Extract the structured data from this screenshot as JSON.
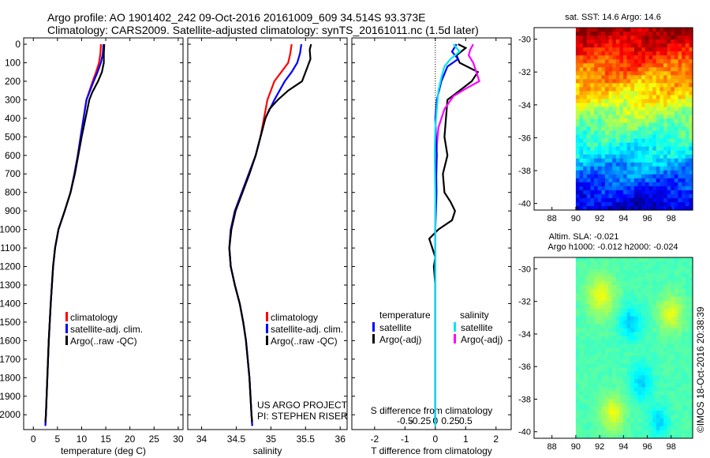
{
  "header": {
    "line1": "Argo profile: AO 1901402_242 09-Oct-2016 20161009_609 34.514S 93.373E",
    "line2": "Climatology: CARS2009. Satellite-adjusted climatology: synTS_20161011.nc (1.5d later)"
  },
  "colors": {
    "climatology": "#ff0000",
    "satellite": "#0000ff",
    "argo": "#000000",
    "satellite_salinity": "#00e5ee",
    "argo_salinity": "#ff00ff"
  },
  "chart_data": [
    {
      "type": "line",
      "xlabel": "temperature (deg C)",
      "ylabel": "",
      "xlim": [
        -2,
        31
      ],
      "ylim": [
        2080,
        0
      ],
      "xticks": [
        0,
        5,
        10,
        15,
        20,
        25,
        30
      ],
      "yticks": [
        0,
        100,
        200,
        300,
        400,
        500,
        600,
        700,
        800,
        900,
        1000,
        1100,
        1200,
        1300,
        1400,
        1500,
        1600,
        1700,
        1800,
        1900,
        2000
      ],
      "legend": [
        "climatology",
        "satellite-adj. clim.",
        "Argo(..raw -QC)"
      ],
      "legend_location": "lower-right",
      "series": [
        {
          "name": "climatology",
          "depth": [
            0,
            50,
            100,
            150,
            200,
            300,
            400,
            500,
            600,
            700,
            800,
            900,
            1000,
            1100,
            1200,
            1400,
            1600,
            1800,
            2000,
            2060
          ],
          "values": [
            14.0,
            13.9,
            13.6,
            13.0,
            12.3,
            11.0,
            10.4,
            9.8,
            9.2,
            8.5,
            7.7,
            6.5,
            5.2,
            4.5,
            4.1,
            3.6,
            3.2,
            2.9,
            2.6,
            2.5
          ]
        },
        {
          "name": "satellite-adj. clim.",
          "depth": [
            0,
            50,
            100,
            150,
            200,
            300,
            400,
            500,
            600,
            700,
            800,
            900,
            1000,
            1100,
            1200,
            1400,
            1600,
            1800,
            2000,
            2060
          ],
          "values": [
            14.5,
            14.4,
            14.0,
            13.3,
            12.5,
            11.0,
            10.4,
            9.8,
            9.2,
            8.5,
            7.7,
            6.5,
            5.2,
            4.5,
            4.1,
            3.6,
            3.2,
            2.9,
            2.6,
            2.5
          ]
        },
        {
          "name": "Argo(..raw -QC)",
          "depth": [
            0,
            50,
            100,
            150,
            200,
            260,
            300,
            400,
            500,
            600,
            700,
            800,
            900,
            1000,
            1100,
            1200,
            1400,
            1600,
            1800,
            2000,
            2040
          ],
          "values": [
            14.7,
            14.6,
            14.6,
            14.2,
            13.4,
            12.2,
            11.6,
            10.8,
            10.0,
            9.3,
            8.6,
            7.7,
            6.5,
            5.2,
            4.5,
            4.1,
            3.6,
            3.2,
            2.9,
            2.6,
            2.5
          ]
        }
      ]
    },
    {
      "type": "line",
      "xlabel": "salinity",
      "ylabel": "",
      "xlim": [
        33.8,
        36.1
      ],
      "ylim": [
        2080,
        0
      ],
      "xticks": [
        34,
        34.5,
        35,
        35.5,
        36
      ],
      "legend": [
        "climatology",
        "satellite-adj. clim.",
        "Argo(..raw -QC)"
      ],
      "legend_location": "lower-right",
      "annotations": [
        "US ARGO PROJECT",
        "PI: STEPHEN RISER"
      ],
      "series": [
        {
          "name": "climatology",
          "depth": [
            0,
            50,
            100,
            150,
            200,
            300,
            400,
            500,
            600,
            700,
            800,
            900,
            1000,
            1100,
            1200,
            1300,
            1400,
            1500,
            1600,
            1800,
            2000,
            2060
          ],
          "values": [
            35.3,
            35.28,
            35.25,
            35.15,
            35.05,
            34.95,
            34.9,
            34.85,
            34.78,
            34.68,
            34.58,
            34.48,
            34.42,
            34.4,
            34.42,
            34.48,
            34.55,
            34.6,
            34.64,
            34.69,
            34.72,
            34.73
          ]
        },
        {
          "name": "satellite-adj. clim.",
          "depth": [
            0,
            50,
            100,
            150,
            200,
            300,
            400,
            500,
            600,
            700,
            800,
            900,
            1000,
            1100,
            1200,
            1300,
            1400,
            1500,
            1600,
            1800,
            2000,
            2060
          ],
          "values": [
            35.44,
            35.42,
            35.38,
            35.3,
            35.2,
            35.05,
            34.92,
            34.85,
            34.78,
            34.68,
            34.58,
            34.48,
            34.42,
            34.4,
            34.42,
            34.48,
            34.55,
            34.6,
            34.64,
            34.69,
            34.72,
            34.73
          ]
        },
        {
          "name": "Argo(..raw -QC)",
          "depth": [
            0,
            30,
            80,
            130,
            200,
            250,
            300,
            350,
            400,
            500,
            600,
            700,
            800,
            900,
            1000,
            1100,
            1200,
            1300,
            1400,
            1500,
            1600,
            1800,
            2000,
            2040
          ],
          "values": [
            35.58,
            35.56,
            35.57,
            35.52,
            35.45,
            35.25,
            35.1,
            34.98,
            34.92,
            34.85,
            34.78,
            34.69,
            34.59,
            34.49,
            34.43,
            34.4,
            34.42,
            34.48,
            34.55,
            34.6,
            34.64,
            34.69,
            34.72,
            34.73
          ]
        }
      ]
    },
    {
      "type": "line",
      "xlabel": "T difference from climatology",
      "top_xlabel": "S difference from climatology",
      "xlim": [
        -2.75,
        2.5
      ],
      "ylim": [
        2080,
        0
      ],
      "xticks_T": [
        -2,
        -1,
        0,
        1,
        2
      ],
      "xticks_S_labels": [
        "-0.5",
        "-0.25",
        "0",
        "0.25",
        "0.5"
      ],
      "legend_temperature_title": "temperature",
      "legend_salinity_title": "salinity",
      "legend": [
        "satellite",
        "Argo(-adj)",
        "satellite",
        "Argo(-adj)"
      ],
      "series": [
        {
          "name": "satellite",
          "quantity": "temperature",
          "depth": [
            0,
            40,
            80,
            120,
            160,
            200,
            300,
            400,
            500,
            600,
            700,
            800,
            900,
            1000,
            1200,
            1500,
            1800,
            2060
          ],
          "values": [
            0.7,
            0.55,
            0.75,
            0.4,
            0.3,
            0.2,
            0.05,
            0.0,
            0.02,
            0.05,
            0.03,
            0.04,
            0.02,
            0.0,
            0.0,
            0.0,
            0.0,
            0.0
          ]
        },
        {
          "name": "Argo(-adj)",
          "quantity": "temperature",
          "depth": [
            0,
            20,
            60,
            100,
            150,
            200,
            250,
            300,
            400,
            500,
            600,
            700,
            800,
            850,
            900,
            950,
            1000,
            1050,
            1100,
            1150,
            1200,
            1300,
            1400,
            1600,
            1800,
            2040
          ],
          "values": [
            0.75,
            1.0,
            0.7,
            0.8,
            1.4,
            1.2,
            0.8,
            0.4,
            0.35,
            0.3,
            0.4,
            0.25,
            0.3,
            0.5,
            0.65,
            0.55,
            0.1,
            -0.2,
            -0.1,
            0.0,
            -0.05,
            0.0,
            0.0,
            0.0,
            0.0,
            0.0
          ]
        },
        {
          "name": "satellite",
          "quantity": "salinity",
          "depth": [
            0,
            40,
            80,
            120,
            180,
            250,
            350,
            450,
            600,
            800,
            1000,
            1400,
            1800,
            2060
          ],
          "values": [
            0.6,
            0.8,
            0.5,
            0.3,
            0.2,
            0.1,
            0.05,
            0.0,
            -0.02,
            0.0,
            0.0,
            0.0,
            0.0,
            0.0
          ]
        },
        {
          "name": "Argo(-adj)",
          "quantity": "salinity",
          "depth": [
            0,
            30,
            60,
            100,
            150,
            200,
            240,
            280,
            350,
            450,
            550,
            700,
            900,
            1100,
            1400,
            1800,
            2040
          ],
          "values": [
            1.25,
            1.15,
            1.1,
            1.25,
            1.35,
            1.45,
            1.0,
            0.6,
            0.3,
            0.1,
            0.05,
            0.03,
            0.0,
            0.0,
            0.0,
            0.0,
            0.0
          ]
        }
      ]
    },
    {
      "type": "heatmap",
      "title": "sat. SST: 14.6 Argo: 14.6",
      "xticks": [
        88,
        90,
        92,
        94,
        96,
        98
      ],
      "yticks": [
        -30,
        -32,
        -34,
        -36,
        -38,
        -40
      ],
      "xlim": [
        86.5,
        99.8
      ],
      "ylim": [
        -40.4,
        -29.3
      ],
      "colormap": "jet"
    },
    {
      "type": "heatmap",
      "title_line1": "Altim. SLA: -0.021",
      "title_line2": "Argo h1000: -0.012 h2000: -0.024",
      "xticks": [
        88,
        90,
        92,
        94,
        96,
        98
      ],
      "yticks": [
        -30,
        -32,
        -34,
        -36,
        -38,
        -40
      ],
      "xlim": [
        86.5,
        99.8
      ],
      "ylim": [
        -40.4,
        -29.3
      ],
      "colormap": "jet"
    }
  ],
  "footer": {
    "credit": "©IMOS 18-Oct-2016 20:38:39"
  }
}
